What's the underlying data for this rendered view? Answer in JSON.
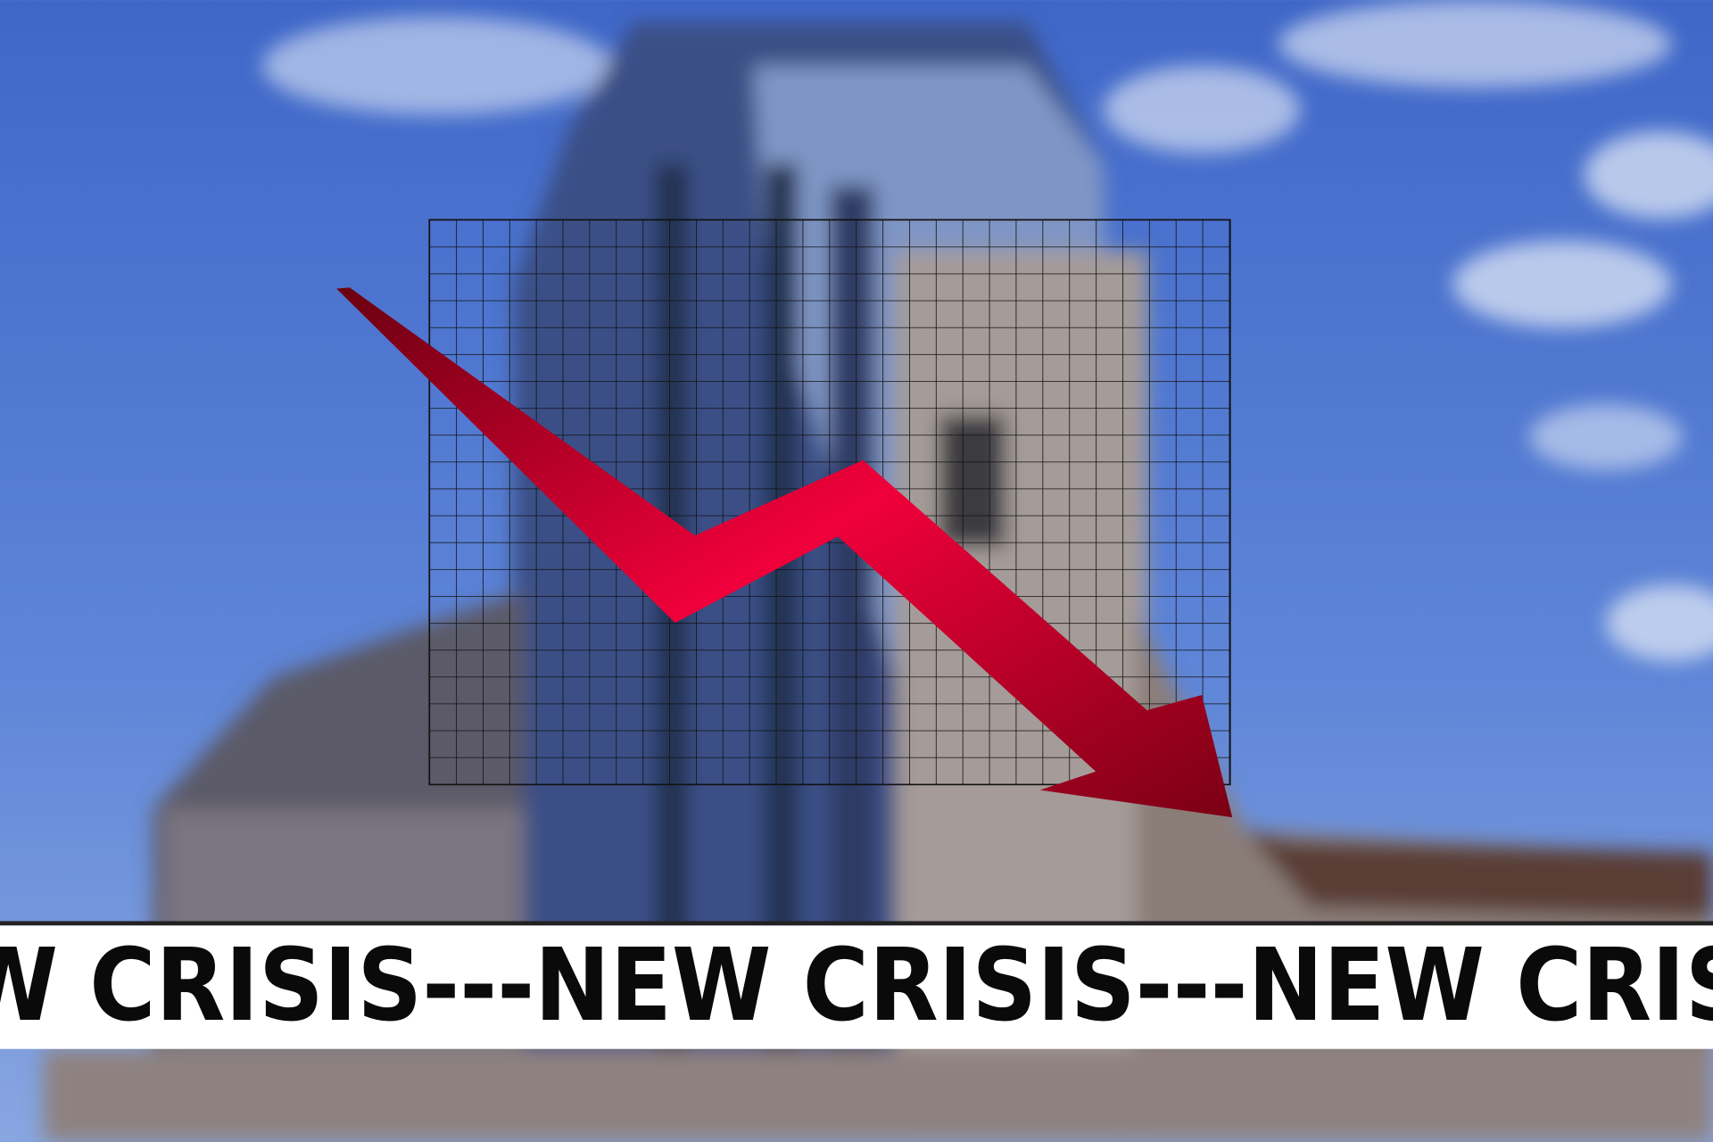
{
  "banner": {
    "text": "W CRISIS---NEW CRISIS---NEW CRIS"
  }
}
